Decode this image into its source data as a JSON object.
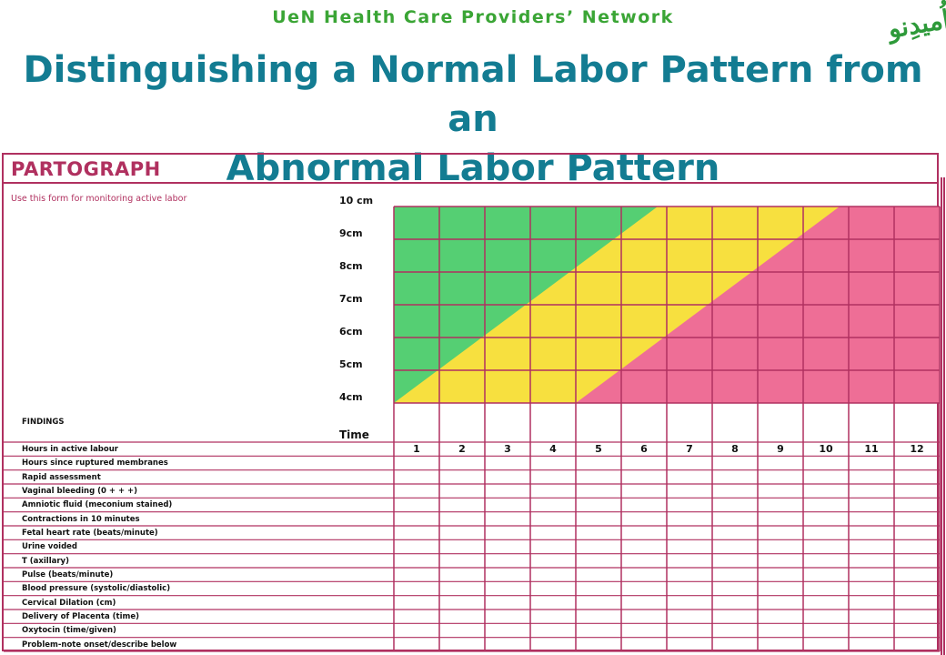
{
  "header": {
    "network": "UeN Health Care Providers’ Network",
    "title_line1": "Distinguishing a Normal Labor Pattern from an",
    "title_line2": "Abnormal Labor Pattern",
    "logo_text": "اُمیدِنو"
  },
  "form": {
    "title": "PARTOGRAPH",
    "subtitle": "Use this form for monitoring active labor",
    "findings_label": "FINDINGS",
    "time_label": "Time",
    "dilation_labels": [
      "10 cm",
      "9cm",
      "8cm",
      "7cm",
      "6cm",
      "5cm",
      "4cm"
    ],
    "hours": [
      "1",
      "2",
      "3",
      "4",
      "5",
      "6",
      "7",
      "8",
      "9",
      "10",
      "11",
      "12"
    ],
    "rows": [
      "Hours in active labour",
      "Hours since ruptured membranes",
      "Rapid assessment",
      "Vaginal bleeding (0 + + +)",
      "Amniotic fluid (meconium stained)",
      "Contractions in 10 minutes",
      "Fetal heart rate (beats/minute)",
      "Urine voided",
      "T (axillary)",
      "Pulse (beats/minute)",
      "Blood pressure (systolic/diastolic)",
      "Cervical Dilation (cm)",
      "Delivery of Placenta (time)",
      "Oxytocin (time/given)",
      "Problem-note onset/describe below"
    ]
  },
  "zones": {
    "normal_color": "#55cf73",
    "alert_color": "#f7e03f",
    "abnormal_color": "#ee6e96",
    "grid_color": "#b03060"
  }
}
